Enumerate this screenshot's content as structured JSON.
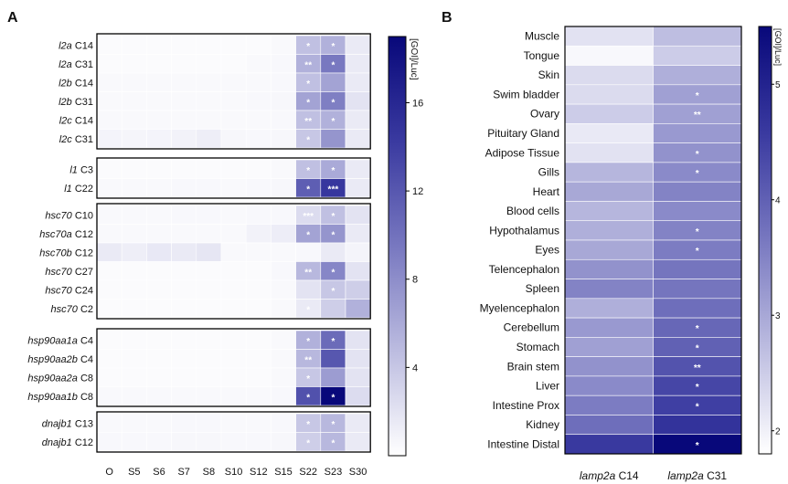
{
  "chart_data": [
    {
      "panel_label": "A",
      "type": "heatmap",
      "colorbar_label": "[GOI]/Luc]",
      "colorbar_ticks": [
        4,
        8,
        12,
        16
      ],
      "colorbar_range": [
        0,
        19
      ],
      "colormap": [
        "#ffffff",
        "#bcbce0",
        "#7878c0",
        "#3a3aa0",
        "#08087a"
      ],
      "x": [
        "O",
        "S5",
        "S6",
        "S7",
        "S8",
        "S10",
        "S12",
        "S15",
        "S22",
        "S23",
        "S30"
      ],
      "groups": [
        {
          "rows": [
            {
              "gene": "l2a",
              "clone": "C14",
              "values": [
                0.3,
                0.3,
                0.3,
                0.3,
                0.3,
                0.3,
                0.3,
                0.4,
                4.5,
                5.5,
                1.5
              ],
              "stars": [
                "",
                "",
                "",
                "",
                "",
                "",
                "",
                "",
                "*",
                "*",
                ""
              ]
            },
            {
              "gene": "l2a",
              "clone": "C31",
              "values": [
                0.3,
                0.3,
                0.3,
                0.3,
                0.3,
                0.3,
                0.4,
                0.5,
                5.5,
                9.5,
                1.5
              ],
              "stars": [
                "",
                "",
                "",
                "",
                "",
                "",
                "",
                "",
                "**",
                "*",
                ""
              ]
            },
            {
              "gene": "l2b",
              "clone": "C14",
              "values": [
                0.4,
                0.4,
                0.4,
                0.4,
                0.4,
                0.4,
                0.4,
                0.5,
                4.5,
                6.5,
                1.5
              ],
              "stars": [
                "",
                "",
                "",
                "",
                "",
                "",
                "",
                "",
                "*",
                "",
                ""
              ]
            },
            {
              "gene": "l2b",
              "clone": "C31",
              "values": [
                0.4,
                0.4,
                0.4,
                0.4,
                0.4,
                0.4,
                0.5,
                0.6,
                6.5,
                9,
                2.0
              ],
              "stars": [
                "",
                "",
                "",
                "",
                "",
                "",
                "",
                "",
                "*",
                "*",
                ""
              ]
            },
            {
              "gene": "l2c",
              "clone": "C14",
              "values": [
                0.4,
                0.4,
                0.4,
                0.4,
                0.4,
                0.4,
                0.4,
                0.5,
                4.5,
                5.5,
                1.5
              ],
              "stars": [
                "",
                "",
                "",
                "",
                "",
                "",
                "",
                "",
                "**",
                "*",
                ""
              ]
            },
            {
              "gene": "l2c",
              "clone": "C31",
              "values": [
                0.8,
                0.7,
                0.8,
                0.9,
                1.2,
                0.6,
                0.5,
                0.6,
                4.0,
                7.5,
                1.5
              ],
              "stars": [
                "",
                "",
                "",
                "",
                "",
                "",
                "",
                "",
                "*",
                "",
                ""
              ]
            }
          ]
        },
        {
          "rows": [
            {
              "gene": "l1",
              "clone": "C3",
              "values": [
                0.3,
                0.3,
                0.3,
                0.3,
                0.3,
                0.3,
                0.3,
                0.4,
                4.5,
                6.0,
                1.5
              ],
              "stars": [
                "",
                "",
                "",
                "",
                "",
                "",
                "",
                "",
                "*",
                "*",
                ""
              ]
            },
            {
              "gene": "l1",
              "clone": "C22",
              "values": [
                0.4,
                0.4,
                0.4,
                0.5,
                0.5,
                0.4,
                0.5,
                0.6,
                11.5,
                14.5,
                1.5
              ],
              "stars": [
                "",
                "",
                "",
                "",
                "",
                "",
                "",
                "",
                "*",
                "***",
                ""
              ]
            }
          ]
        },
        {
          "rows": [
            {
              "gene": "hsc70",
              "clone": "C10",
              "values": [
                0.4,
                0.4,
                0.4,
                0.5,
                0.5,
                0.4,
                0.5,
                0.5,
                2.5,
                4.5,
                2.0
              ],
              "stars": [
                "",
                "",
                "",
                "",
                "",
                "",
                "",
                "",
                "***",
                "*",
                ""
              ]
            },
            {
              "gene": "hsc70a",
              "clone": "C12",
              "values": [
                0.4,
                0.4,
                0.4,
                0.4,
                0.4,
                0.4,
                0.9,
                1.3,
                6.5,
                7.5,
                1.5
              ],
              "stars": [
                "",
                "",
                "",
                "",
                "",
                "",
                "",
                "",
                "*",
                "*",
                ""
              ]
            },
            {
              "gene": "hsc70b",
              "clone": "C12",
              "values": [
                1.5,
                1.2,
                1.6,
                1.5,
                1.8,
                0.4,
                0.4,
                0.4,
                0.5,
                1.5,
                0.8
              ],
              "stars": [
                "",
                "",
                "",
                "",
                "",
                "",
                "",
                "",
                "",
                "",
                ""
              ]
            },
            {
              "gene": "hsc70",
              "clone": "C27",
              "values": [
                0.3,
                0.3,
                0.3,
                0.3,
                0.3,
                0.3,
                0.3,
                0.5,
                5.0,
                8.5,
                2.0
              ],
              "stars": [
                "",
                "",
                "",
                "",
                "",
                "",
                "",
                "",
                "**",
                "*",
                ""
              ]
            },
            {
              "gene": "hsc70",
              "clone": "C24",
              "values": [
                0.3,
                0.3,
                0.3,
                0.3,
                0.3,
                0.3,
                0.3,
                0.4,
                2.0,
                4.0,
                3.5
              ],
              "stars": [
                "",
                "",
                "",
                "",
                "",
                "",
                "",
                "",
                "",
                "*",
                ""
              ]
            },
            {
              "gene": "hsc70",
              "clone": "C2",
              "values": [
                0.3,
                0.3,
                0.3,
                0.3,
                0.3,
                0.3,
                0.3,
                0.4,
                1.5,
                3.5,
                5.5
              ],
              "stars": [
                "",
                "",
                "",
                "",
                "",
                "",
                "",
                "",
                "*",
                "",
                ""
              ]
            }
          ]
        },
        {
          "rows": [
            {
              "gene": "hsp90aa1a",
              "clone": "C4",
              "values": [
                0.3,
                0.3,
                0.3,
                0.3,
                0.3,
                0.3,
                0.3,
                0.4,
                5.5,
                10.5,
                2.0
              ],
              "stars": [
                "",
                "",
                "",
                "",
                "",
                "",
                "",
                "",
                "*",
                "*",
                ""
              ]
            },
            {
              "gene": "hsp90aa2b",
              "clone": "C4",
              "values": [
                0.3,
                0.3,
                0.3,
                0.3,
                0.3,
                0.3,
                0.3,
                0.4,
                5.0,
                12.0,
                2.0
              ],
              "stars": [
                "",
                "",
                "",
                "",
                "",
                "",
                "",
                "",
                "**",
                "",
                ""
              ]
            },
            {
              "gene": "hsp90aa2a",
              "clone": "C8",
              "values": [
                0.3,
                0.3,
                0.3,
                0.3,
                0.3,
                0.3,
                0.3,
                0.4,
                4.0,
                7.0,
                2.0
              ],
              "stars": [
                "",
                "",
                "",
                "",
                "",
                "",
                "",
                "",
                "*",
                "",
                ""
              ]
            },
            {
              "gene": "hsp90aa1b",
              "clone": "C8",
              "values": [
                0.4,
                0.4,
                0.4,
                0.4,
                0.4,
                0.4,
                0.4,
                0.5,
                12.5,
                19.0,
                2.5
              ],
              "stars": [
                "",
                "",
                "",
                "",
                "",
                "",
                "",
                "",
                "*",
                "*",
                ""
              ]
            }
          ]
        },
        {
          "rows": [
            {
              "gene": "dnajb1",
              "clone": "C13",
              "values": [
                0.4,
                0.4,
                0.4,
                0.5,
                0.5,
                0.4,
                0.4,
                0.5,
                4.0,
                5.0,
                1.5
              ],
              "stars": [
                "",
                "",
                "",
                "",
                "",
                "",
                "",
                "",
                "*",
                "*",
                ""
              ]
            },
            {
              "gene": "dnajb1",
              "clone": "C12",
              "values": [
                0.5,
                0.5,
                0.5,
                0.6,
                0.6,
                0.5,
                0.5,
                0.6,
                3.5,
                5.0,
                1.5
              ],
              "stars": [
                "",
                "",
                "",
                "",
                "",
                "",
                "",
                "",
                "*",
                "*",
                ""
              ]
            }
          ]
        }
      ]
    },
    {
      "panel_label": "B",
      "type": "heatmap",
      "colorbar_label": "[GOI]/Luc]",
      "colorbar_ticks": [
        2,
        3,
        4,
        5
      ],
      "colorbar_range": [
        1.8,
        5.5
      ],
      "colormap": [
        "#ffffff",
        "#bcbce0",
        "#7878c0",
        "#3a3aa0",
        "#08087a"
      ],
      "columns": [
        {
          "gene": "lamp2a",
          "clone": "C14"
        },
        {
          "gene": "lamp2a",
          "clone": "C31"
        }
      ],
      "rows": [
        {
          "label": "Muscle",
          "values": [
            2.2,
            2.7
          ],
          "stars": [
            "",
            ""
          ]
        },
        {
          "label": "Tongue",
          "values": [
            1.9,
            2.5
          ],
          "stars": [
            "",
            ""
          ]
        },
        {
          "label": "Skin",
          "values": [
            2.3,
            2.9
          ],
          "stars": [
            "",
            ""
          ]
        },
        {
          "label": "Swim bladder",
          "values": [
            2.3,
            3.1
          ],
          "stars": [
            "",
            "*"
          ]
        },
        {
          "label": "Ovary",
          "values": [
            2.5,
            3.1
          ],
          "stars": [
            "",
            "**"
          ]
        },
        {
          "label": "Pituitary Gland",
          "values": [
            2.1,
            3.2
          ],
          "stars": [
            "",
            ""
          ]
        },
        {
          "label": "Adipose Tissue",
          "values": [
            2.2,
            3.3
          ],
          "stars": [
            "",
            "*"
          ]
        },
        {
          "label": "Gills",
          "values": [
            2.8,
            3.4
          ],
          "stars": [
            "",
            "*"
          ]
        },
        {
          "label": "Heart",
          "values": [
            3.0,
            3.5
          ],
          "stars": [
            "",
            ""
          ]
        },
        {
          "label": "Blood cells",
          "values": [
            2.8,
            3.4
          ],
          "stars": [
            "",
            ""
          ]
        },
        {
          "label": "Hypothalamus",
          "values": [
            2.9,
            3.5
          ],
          "stars": [
            "",
            "*"
          ]
        },
        {
          "label": "Eyes",
          "values": [
            3.0,
            3.6
          ],
          "stars": [
            "",
            "*"
          ]
        },
        {
          "label": "Telencephalon",
          "values": [
            3.3,
            3.7
          ],
          "stars": [
            "",
            ""
          ]
        },
        {
          "label": "Spleen",
          "values": [
            3.5,
            3.7
          ],
          "stars": [
            "",
            ""
          ]
        },
        {
          "label": "Myelencephalon",
          "values": [
            2.9,
            3.8
          ],
          "stars": [
            "",
            ""
          ]
        },
        {
          "label": "Cerebellum",
          "values": [
            3.2,
            3.9
          ],
          "stars": [
            "",
            "*"
          ]
        },
        {
          "label": "Stomach",
          "values": [
            3.1,
            4.0
          ],
          "stars": [
            "",
            "*"
          ]
        },
        {
          "label": "Brain stem",
          "values": [
            3.3,
            4.2
          ],
          "stars": [
            "",
            "**"
          ]
        },
        {
          "label": "Liver",
          "values": [
            3.4,
            4.4
          ],
          "stars": [
            "",
            "*"
          ]
        },
        {
          "label": "Intestine Prox",
          "values": [
            3.6,
            4.5
          ],
          "stars": [
            "",
            "*"
          ]
        },
        {
          "label": "Kidney",
          "values": [
            3.8,
            4.7
          ],
          "stars": [
            "",
            ""
          ]
        },
        {
          "label": "Intestine Distal",
          "values": [
            4.6,
            5.5
          ],
          "stars": [
            "",
            "*"
          ]
        }
      ]
    }
  ]
}
